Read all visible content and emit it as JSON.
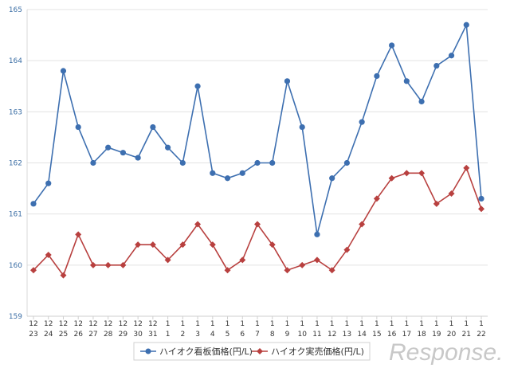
{
  "chart_data": {
    "type": "line",
    "x_month": [
      "12",
      "12",
      "12",
      "12",
      "12",
      "12",
      "12",
      "12",
      "12",
      "1",
      "1",
      "1",
      "1",
      "1",
      "1",
      "1",
      "1",
      "1",
      "1",
      "1",
      "1",
      "1",
      "1",
      "1",
      "1",
      "1",
      "1",
      "1",
      "1",
      "1",
      "1"
    ],
    "x_day": [
      "23",
      "24",
      "25",
      "26",
      "27",
      "28",
      "29",
      "30",
      "31",
      "1",
      "2",
      "3",
      "4",
      "5",
      "6",
      "7",
      "8",
      "9",
      "10",
      "11",
      "12",
      "13",
      "14",
      "15",
      "16",
      "17",
      "18",
      "19",
      "20",
      "21",
      "22"
    ],
    "ylim": [
      159,
      165
    ],
    "yticks": [
      "159",
      "160",
      "161",
      "162",
      "163",
      "164",
      "165"
    ],
    "series": [
      {
        "name": "ハイオク看板価格(円/L)",
        "color": "#3d6fb0",
        "marker": "circle",
        "values": [
          161.2,
          161.6,
          163.8,
          162.7,
          162.0,
          162.3,
          162.2,
          162.1,
          162.7,
          162.3,
          162.0,
          163.5,
          161.8,
          161.7,
          161.8,
          162.0,
          162.0,
          163.6,
          162.7,
          160.6,
          161.7,
          162.0,
          162.8,
          163.7,
          164.3,
          163.6,
          163.2,
          163.9,
          164.1,
          164.7,
          161.3
        ]
      },
      {
        "name": "ハイオク実売価格(円/L)",
        "color": "#b8403f",
        "marker": "diamond",
        "values": [
          159.9,
          160.2,
          159.8,
          160.6,
          160.0,
          160.0,
          160.0,
          160.4,
          160.4,
          160.1,
          160.4,
          160.8,
          160.4,
          159.9,
          160.1,
          160.8,
          160.4,
          159.9,
          160.0,
          160.1,
          159.9,
          160.3,
          160.8,
          161.3,
          161.7,
          161.8,
          161.8,
          161.2,
          161.4,
          161.9,
          161.1
        ]
      }
    ],
    "grid": true,
    "legend_position": "bottom"
  },
  "watermark": "Response."
}
